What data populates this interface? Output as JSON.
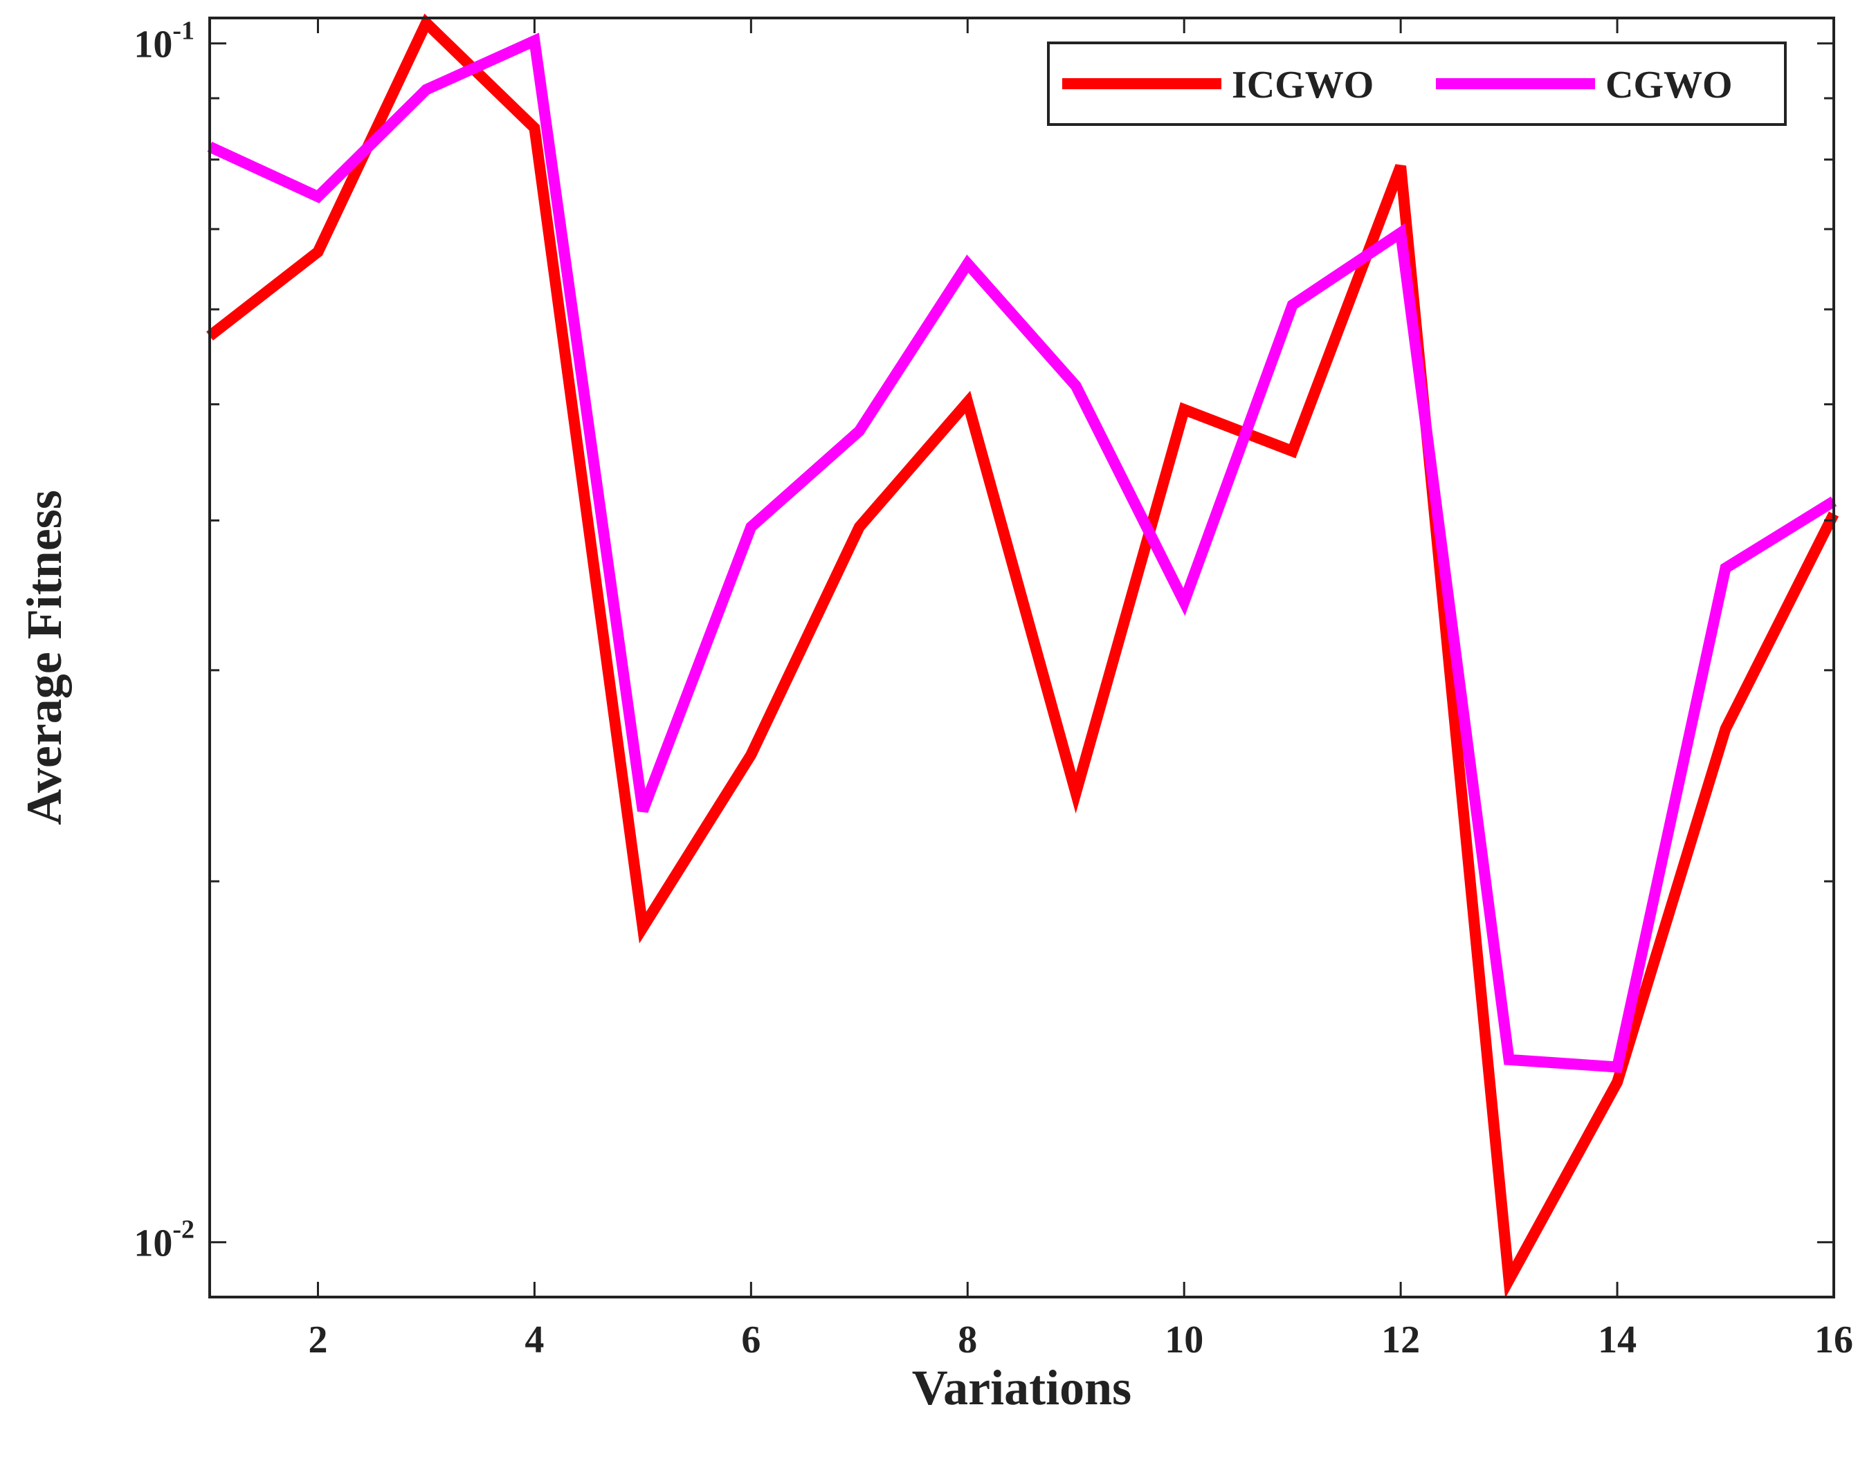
{
  "chart_data": {
    "type": "line",
    "title": "",
    "xlabel": "Variations",
    "ylabel": "Average Fitness",
    "x": [
      1,
      2,
      3,
      4,
      5,
      6,
      7,
      8,
      9,
      10,
      11,
      12,
      13,
      14,
      15,
      16
    ],
    "xlim": [
      1,
      16
    ],
    "xticks": [
      2,
      4,
      6,
      8,
      10,
      12,
      14,
      16
    ],
    "yscale": "log",
    "ylim": [
      0.009,
      0.105
    ],
    "yticks": [
      {
        "base": "10",
        "exp": "-1",
        "value": 0.1
      },
      {
        "base": "10",
        "exp": "-2",
        "value": 0.01
      }
    ],
    "grid": false,
    "legend_position": "top-right",
    "series": [
      {
        "name": "ICGWO",
        "color": "#ff0000",
        "values": [
          0.057,
          0.067,
          0.104,
          0.085,
          0.0183,
          0.0255,
          0.0395,
          0.0502,
          0.0237,
          0.0495,
          0.0457,
          0.079,
          0.0093,
          0.0136,
          0.0268,
          0.0405
        ]
      },
      {
        "name": "CGWO",
        "color": "#ff00ff",
        "values": [
          0.082,
          0.0745,
          0.0915,
          0.1005,
          0.0229,
          0.0395,
          0.0475,
          0.0655,
          0.0518,
          0.0342,
          0.0605,
          0.0695,
          0.0142,
          0.014,
          0.0365,
          0.0415
        ]
      }
    ]
  }
}
